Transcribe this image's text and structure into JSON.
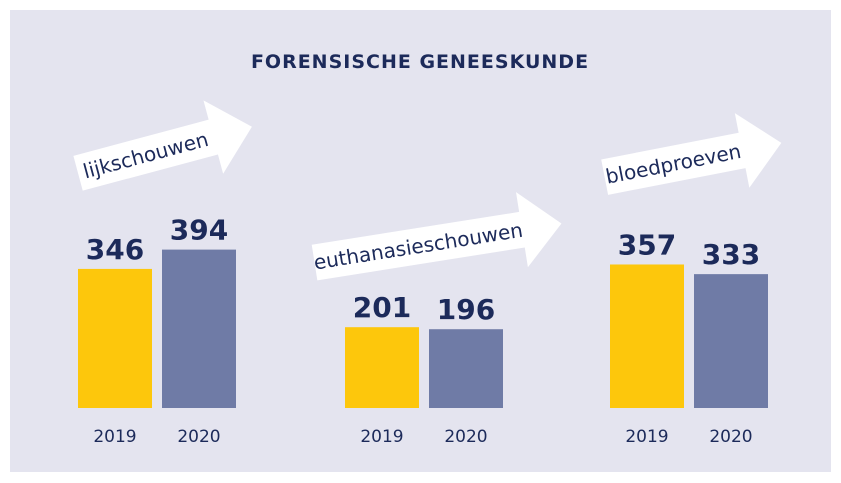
{
  "title": "FORENSISCHE GENEESKUNDE",
  "chart_data": [
    {
      "type": "bar",
      "title": "lijkschouwen",
      "categories": [
        "2019",
        "2020"
      ],
      "values": [
        346,
        394
      ],
      "colors": [
        "#fdc70c",
        "#6f7ba6"
      ]
    },
    {
      "type": "bar",
      "title": "euthanasieschouwen",
      "categories": [
        "2019",
        "2020"
      ],
      "values": [
        201,
        196
      ],
      "colors": [
        "#fdc70c",
        "#6f7ba6"
      ]
    },
    {
      "type": "bar",
      "title": "bloedproeven",
      "categories": [
        "2019",
        "2020"
      ],
      "values": [
        357,
        333
      ],
      "colors": [
        "#fdc70c",
        "#6f7ba6"
      ]
    }
  ]
}
